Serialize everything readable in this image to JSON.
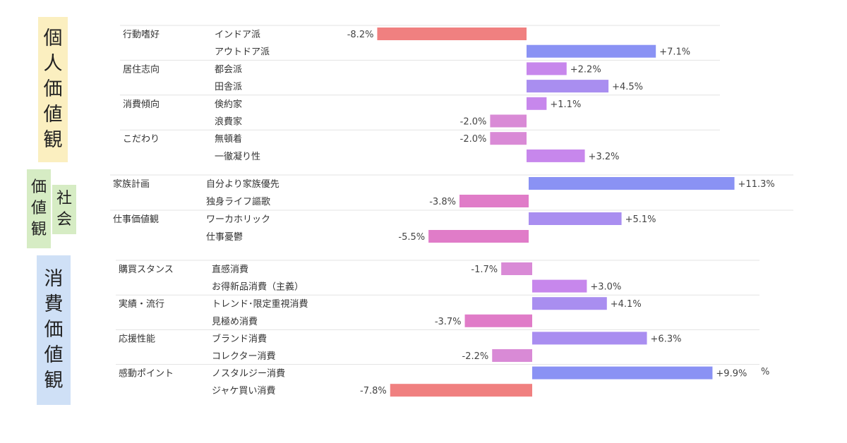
{
  "sections": [
    {
      "key": "personal",
      "label_chars": [
        "個",
        "人",
        "価",
        "値",
        "観"
      ],
      "color": "#fbefc0"
    },
    {
      "key": "social",
      "label_chars_left": [
        "価",
        "値",
        "観"
      ],
      "label_chars_right": [
        "社",
        "会"
      ],
      "color": "#d6ecc4"
    },
    {
      "key": "consumer",
      "label_chars": [
        "消",
        "費",
        "価",
        "値",
        "観"
      ],
      "color": "#cfe0f6"
    }
  ],
  "unit_label": "%",
  "chart_data": {
    "type": "bar",
    "orientation": "horizontal",
    "categories": [
      "インドア派",
      "アウトドア派",
      "都会派",
      "田舎派",
      "倹約家",
      "浪費家",
      "無頓着",
      "一徹凝り性",
      "自分より家族優先",
      "独身ライフ謳歌",
      "ワーカホリック",
      "仕事憂鬱",
      "直感消費",
      "お得新品消費（主義）",
      "トレンド･限定重視消費",
      "見極め消費",
      "ブランド消費",
      "コレクター消費",
      "ノスタルジー消費",
      "ジャケ買い消費"
    ],
    "values": [
      -8.2,
      7.1,
      2.2,
      4.5,
      1.1,
      -2.0,
      -2.0,
      3.2,
      11.3,
      -3.8,
      5.1,
      -5.5,
      -1.7,
      3.0,
      4.1,
      -3.7,
      6.3,
      -2.2,
      9.9,
      -7.8
    ],
    "value_labels": [
      "-8.2%",
      "+7.1%",
      "+2.2%",
      "+4.5%",
      "+1.1%",
      "-2.0%",
      "-2.0%",
      "+3.2%",
      "+11.3%",
      "-3.8%",
      "+5.1%",
      "-5.5%",
      "-1.7%",
      "+3.0%",
      "+4.1%",
      "-3.7%",
      "+6.3%",
      "-2.2%",
      "+9.9%",
      "-7.8%"
    ],
    "groups": [
      {
        "name": "行動嗜好",
        "items": [
          0,
          1
        ],
        "section": "personal"
      },
      {
        "name": "居住志向",
        "items": [
          2,
          3
        ],
        "section": "personal"
      },
      {
        "name": "消費傾向",
        "items": [
          4,
          5
        ],
        "section": "personal"
      },
      {
        "name": "こだわり",
        "items": [
          6,
          7
        ],
        "section": "personal"
      },
      {
        "name": "家族計画",
        "items": [
          8,
          9
        ],
        "section": "social"
      },
      {
        "name": "仕事価値観",
        "items": [
          10,
          11
        ],
        "section": "social"
      },
      {
        "name": "購買スタンス",
        "items": [
          12,
          13
        ],
        "section": "consumer"
      },
      {
        "name": "実績・流行",
        "items": [
          14,
          15
        ],
        "section": "consumer"
      },
      {
        "name": "応援性能",
        "items": [
          16,
          17
        ],
        "section": "consumer"
      },
      {
        "name": "感動ポイント",
        "items": [
          18,
          19
        ],
        "section": "consumer"
      }
    ],
    "colors": {
      "strong_negative": "#f08080",
      "negative": "#e07cc8",
      "light_negative": "#d98ad6",
      "light_positive": "#c787ec",
      "positive": "#a98ef0",
      "strong_positive": "#8a92f4"
    }
  }
}
